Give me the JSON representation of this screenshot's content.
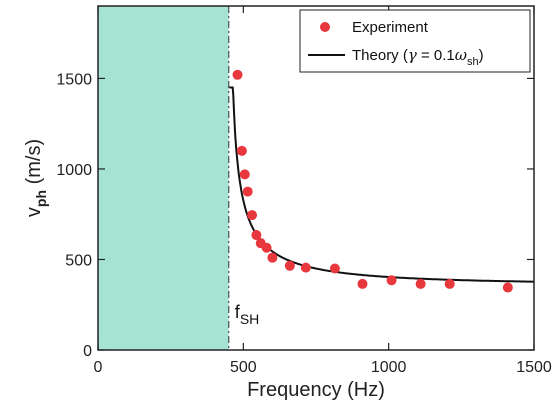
{
  "chart_data": {
    "type": "scatter",
    "xlabel": "Frequency (Hz)",
    "ylabel_main": "v",
    "ylabel_sub": "ph",
    "ylabel_unit": " (m/s)",
    "xlim": [
      0,
      1500
    ],
    "ylim": [
      0,
      1900
    ],
    "xticks": [
      0,
      500,
      1000,
      1500
    ],
    "yticks": [
      0,
      500,
      1000,
      1500
    ],
    "grid": false,
    "legend_position": "top-right",
    "shaded_region": {
      "x": [
        0,
        450
      ],
      "color": "#a6e3d2"
    },
    "cutoff_frequency": 450,
    "annotation": {
      "main": "f",
      "sub": "SH"
    },
    "series": [
      {
        "name": "Experiment",
        "kind": "points",
        "color": "#e8383d",
        "x": [
          480,
          495,
          505,
          515,
          530,
          545,
          560,
          580,
          600,
          660,
          715,
          815,
          910,
          1010,
          1110,
          1210,
          1410
        ],
        "y": [
          1520,
          1100,
          970,
          875,
          745,
          635,
          590,
          565,
          510,
          465,
          455,
          450,
          365,
          385,
          365,
          365,
          345
        ]
      },
      {
        "name_main": "Theory (",
        "name_gamma": "γ",
        "name_mid": " = 0.1",
        "name_omega": "ω",
        "name_sub": "sh",
        "name_end": ")",
        "kind": "line",
        "color": "#111111",
        "model": {
          "f0": 450,
          "v_inf": 360,
          "v_top": 1450
        }
      }
    ]
  }
}
